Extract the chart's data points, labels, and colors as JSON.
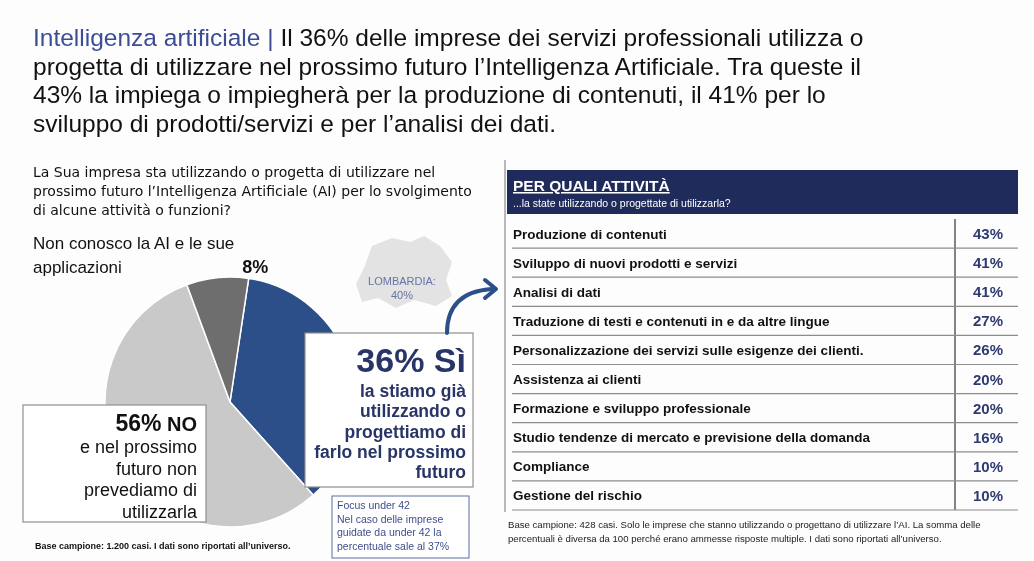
{
  "chart_data": [
    {
      "type": "pie",
      "title": "Intelligenza artificiale | Il 36% delle imprese dei servizi professionali utilizza o progetta di utilizzare nel prossimo futuro l’Intelligenza Artificiale. Tra queste il 43% la impiega o impiegherà per la produzione di contenuti, il 41% per lo sviluppo di prodotti/servizi e per l’analisi dei dati.",
      "subtitle": "La Sua impresa sta utilizzando o progetta di utilizzare nel prossimo futuro l’Intelligenza Artificiale (AI) per lo svolgimento di alcune attività o funzioni?",
      "categories": [
        "Sì",
        "NO",
        "Non conosco la AI e le sue applicazioni"
      ],
      "values": [
        36,
        56,
        8
      ],
      "value_labels": [
        "36%",
        "56%",
        "8%"
      ],
      "colors": [
        "#2c4f8a",
        "#c9c9c9",
        "#6e6e6e"
      ],
      "annotations": [
        "la stiamo già utilizzando o progettiamo di farlo nel prossimo futuro",
        "e nel prossimo futuro non prevediamo di utilizzarla",
        "LOMBARDIA: 40%",
        "Focus under 42",
        "Nel caso delle imprese guidate da under 42 la percentuale sale al 37%",
        "Base campione: 1.200 casi. I dati sono riportati all’universo."
      ]
    },
    {
      "type": "other",
      "title": "PER QUALI ATTIVITÀ",
      "subtitle": "...la state utilizzando o progettate di utilizzarla?",
      "categories": [
        "Produzione di contenuti",
        "Sviluppo di nuovi prodotti e servizi",
        "Analisi di dati",
        "Traduzione di testi e contenuti in e da altre lingue",
        "Personalizzazione dei servizi sulle esigenze dei clienti.",
        "Assistenza ai clienti",
        "Formazione e sviluppo professionale",
        "Studio tendenze di mercato e previsione della domanda",
        "Compliance",
        "Gestione del rischio"
      ],
      "values": [
        43,
        41,
        41,
        27,
        26,
        20,
        20,
        16,
        10,
        10
      ],
      "value_labels": [
        "43%",
        "41%",
        "41%",
        "27%",
        "26%",
        "20%",
        "20%",
        "16%",
        "10%",
        "10%"
      ],
      "color": "#2e3a70",
      "annotations": [
        "Base campione: 428 casi. Solo le imprese che stanno utilizzando o progettano di utilizzare l’AI. La somma delle percentuali è diversa da 100 perché erano ammesse risposte multiple. I dati sono riportati all’universo."
      ]
    }
  ]
}
